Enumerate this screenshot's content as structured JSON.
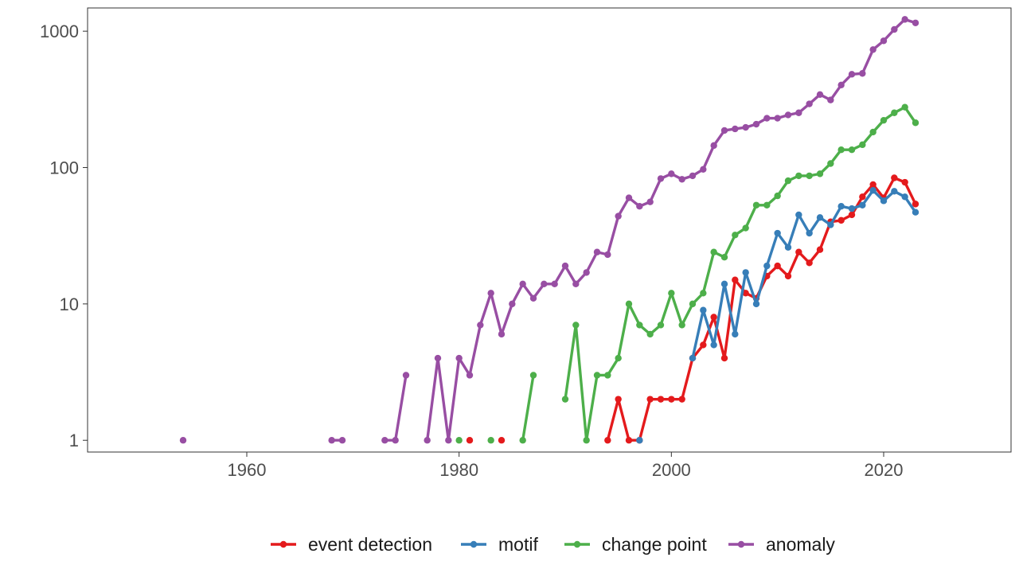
{
  "chart_data": {
    "type": "line",
    "title": "",
    "xlabel": "",
    "ylabel": "",
    "x_scale": "linear",
    "y_scale": "log10",
    "xlim": [
      1945,
      2032
    ],
    "ylim": [
      0.82,
      1480
    ],
    "x_ticks": [
      1960,
      1980,
      2000,
      2020
    ],
    "x_tick_labels": [
      "1960",
      "1980",
      "2000",
      "2020"
    ],
    "y_ticks": [
      1,
      10,
      100,
      1000
    ],
    "y_tick_labels": [
      "1",
      "10",
      "100",
      "1000"
    ],
    "grid": false,
    "legend_position": "bottom",
    "series": [
      {
        "name": "event detection",
        "color": "#E41A1C",
        "points": [
          [
            1981,
            1
          ],
          [
            1984,
            1
          ],
          [
            1994,
            1
          ],
          [
            1995,
            2
          ],
          [
            1996,
            1
          ],
          [
            1997,
            1
          ],
          [
            1998,
            2
          ],
          [
            1999,
            2
          ],
          [
            2000,
            2
          ],
          [
            2001,
            2
          ],
          [
            2002,
            4
          ],
          [
            2003,
            5
          ],
          [
            2004,
            8
          ],
          [
            2005,
            4
          ],
          [
            2006,
            15
          ],
          [
            2007,
            12
          ],
          [
            2008,
            11
          ],
          [
            2009,
            16
          ],
          [
            2010,
            19
          ],
          [
            2011,
            16
          ],
          [
            2012,
            24
          ],
          [
            2013,
            20
          ],
          [
            2014,
            25
          ],
          [
            2015,
            40
          ],
          [
            2016,
            41
          ],
          [
            2017,
            45
          ],
          [
            2018,
            61
          ],
          [
            2019,
            75
          ],
          [
            2020,
            60
          ],
          [
            2021,
            84
          ],
          [
            2022,
            78
          ],
          [
            2023,
            54
          ]
        ]
      },
      {
        "name": "motif",
        "color": "#377EB8",
        "points": [
          [
            1997,
            1
          ],
          [
            2002,
            4
          ],
          [
            2003,
            9
          ],
          [
            2004,
            5
          ],
          [
            2005,
            14
          ],
          [
            2006,
            6
          ],
          [
            2007,
            17
          ],
          [
            2008,
            10
          ],
          [
            2009,
            19
          ],
          [
            2010,
            33
          ],
          [
            2011,
            26
          ],
          [
            2012,
            45
          ],
          [
            2013,
            33
          ],
          [
            2014,
            43
          ],
          [
            2015,
            38
          ],
          [
            2016,
            52
          ],
          [
            2017,
            50
          ],
          [
            2018,
            53
          ],
          [
            2019,
            68
          ],
          [
            2020,
            57
          ],
          [
            2021,
            67
          ],
          [
            2022,
            61
          ],
          [
            2023,
            47
          ]
        ]
      },
      {
        "name": "change point",
        "color": "#4DAF4A",
        "points": [
          [
            1980,
            1
          ],
          [
            1983,
            1
          ],
          [
            1986,
            1
          ],
          [
            1987,
            3
          ],
          [
            1990,
            2
          ],
          [
            1991,
            7
          ],
          [
            1992,
            1
          ],
          [
            1993,
            3
          ],
          [
            1994,
            3
          ],
          [
            1995,
            4
          ],
          [
            1996,
            10
          ],
          [
            1997,
            7
          ],
          [
            1998,
            6
          ],
          [
            1999,
            7
          ],
          [
            2000,
            12
          ],
          [
            2001,
            7
          ],
          [
            2002,
            10
          ],
          [
            2003,
            12
          ],
          [
            2004,
            24
          ],
          [
            2005,
            22
          ],
          [
            2006,
            32
          ],
          [
            2007,
            36
          ],
          [
            2008,
            53
          ],
          [
            2009,
            53
          ],
          [
            2010,
            62
          ],
          [
            2011,
            80
          ],
          [
            2012,
            87
          ],
          [
            2013,
            87
          ],
          [
            2014,
            90
          ],
          [
            2015,
            107
          ],
          [
            2016,
            135
          ],
          [
            2017,
            135
          ],
          [
            2018,
            147
          ],
          [
            2019,
            182
          ],
          [
            2020,
            222
          ],
          [
            2021,
            252
          ],
          [
            2022,
            277
          ],
          [
            2023,
            213
          ]
        ]
      },
      {
        "name": "anomaly",
        "color": "#984EA3",
        "points": [
          [
            1954,
            1
          ],
          [
            1968,
            1
          ],
          [
            1969,
            1
          ],
          [
            1973,
            1
          ],
          [
            1974,
            1
          ],
          [
            1975,
            3
          ],
          [
            1977,
            1
          ],
          [
            1978,
            4
          ],
          [
            1979,
            1
          ],
          [
            1980,
            4
          ],
          [
            1981,
            3
          ],
          [
            1982,
            7
          ],
          [
            1983,
            12
          ],
          [
            1984,
            6
          ],
          [
            1985,
            10
          ],
          [
            1986,
            14
          ],
          [
            1987,
            11
          ],
          [
            1988,
            14
          ],
          [
            1989,
            14
          ],
          [
            1990,
            19
          ],
          [
            1991,
            14
          ],
          [
            1992,
            17
          ],
          [
            1993,
            24
          ],
          [
            1994,
            23
          ],
          [
            1995,
            44
          ],
          [
            1996,
            60
          ],
          [
            1997,
            52
          ],
          [
            1998,
            56
          ],
          [
            1999,
            83
          ],
          [
            2000,
            90
          ],
          [
            2001,
            82
          ],
          [
            2002,
            87
          ],
          [
            2003,
            97
          ],
          [
            2004,
            145
          ],
          [
            2005,
            187
          ],
          [
            2006,
            192
          ],
          [
            2007,
            197
          ],
          [
            2008,
            208
          ],
          [
            2009,
            230
          ],
          [
            2010,
            230
          ],
          [
            2011,
            243
          ],
          [
            2012,
            252
          ],
          [
            2013,
            293
          ],
          [
            2014,
            343
          ],
          [
            2015,
            313
          ],
          [
            2016,
            403
          ],
          [
            2017,
            483
          ],
          [
            2018,
            490
          ],
          [
            2019,
            733
          ],
          [
            2020,
            850
          ],
          [
            2021,
            1030
          ],
          [
            2022,
            1220
          ],
          [
            2023,
            1150
          ]
        ]
      }
    ]
  }
}
